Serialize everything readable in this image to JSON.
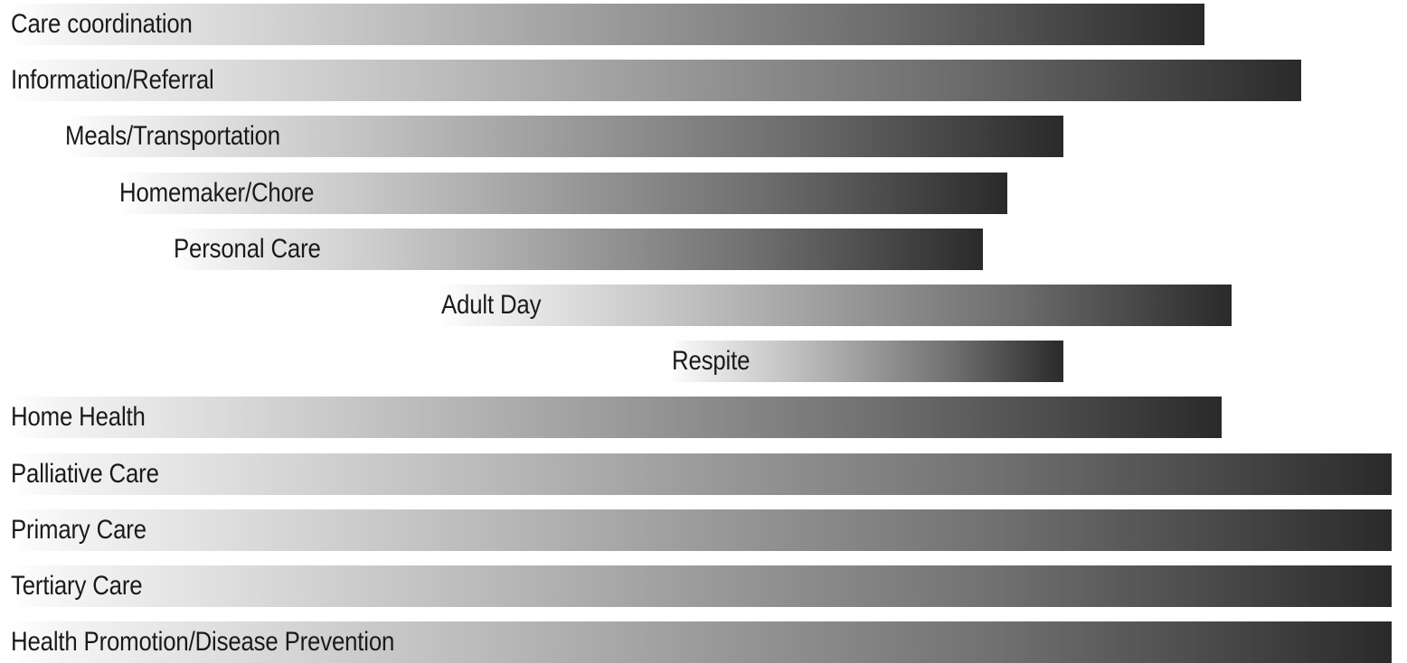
{
  "chart_data": {
    "type": "bar",
    "orientation": "horizontal",
    "style": "gradient bars from light gray (left) to dark gray (right)",
    "bar_gradient_colors": [
      "#ffffff",
      "#2a2a2a"
    ],
    "rows": [
      {
        "label": "Care coordination"
      },
      {
        "label": "Information/Referral"
      },
      {
        "label": "Meals/Transportation"
      },
      {
        "label": "Homemaker/Chore"
      },
      {
        "label": "Personal Care"
      },
      {
        "label": "Adult Day"
      },
      {
        "label": "Respite"
      },
      {
        "label": "Home Health"
      },
      {
        "label": "Palliative Care"
      },
      {
        "label": "Primary Care"
      },
      {
        "label": "Tertiary Care"
      },
      {
        "label": "Health Promotion/Disease Prevention"
      }
    ]
  }
}
